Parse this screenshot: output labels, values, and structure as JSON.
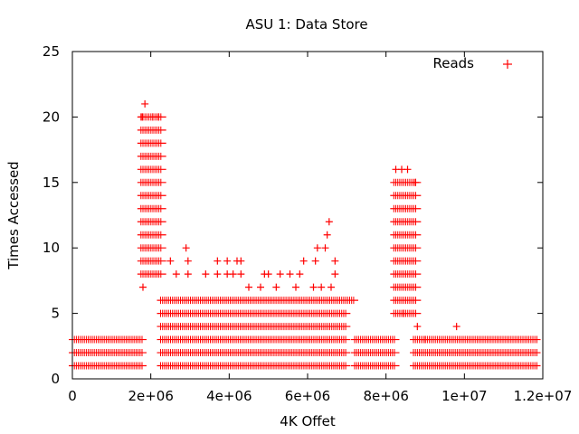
{
  "chart_data": {
    "type": "scatter",
    "title": "ASU 1: Data Store",
    "xlabel": "4K Offet",
    "ylabel": "Times Accessed",
    "xlim": [
      0,
      12000000
    ],
    "ylim": [
      0,
      25
    ],
    "xticks": [
      0,
      2000000,
      4000000,
      6000000,
      8000000,
      10000000,
      12000000
    ],
    "xtick_labels": [
      "0",
      "2e+06",
      "4e+06",
      "6e+06",
      "8e+06",
      "1e+07",
      "1.2e+07"
    ],
    "yticks": [
      0,
      5,
      10,
      15,
      20,
      25
    ],
    "ytick_labels": [
      "0",
      "5",
      "10",
      "15",
      "20",
      "25"
    ],
    "legend": {
      "position": "top-right",
      "entries": [
        "Reads"
      ]
    },
    "marker": "+",
    "grid": false,
    "colors": {
      "series": "#ff0000",
      "axis": "#000000"
    },
    "series": [
      {
        "name": "Reads",
        "bands": [
          {
            "x_range": [
              0,
              1800000
            ],
            "y": [
              1,
              2,
              3
            ]
          },
          {
            "x_range": [
              1750000,
              2300000
            ],
            "y": [
              8,
              9,
              10,
              11,
              12,
              13,
              14,
              15,
              16,
              17,
              18,
              19,
              20
            ]
          },
          {
            "x_range": [
              2250000,
              7000000
            ],
            "y": [
              1,
              2,
              3,
              4,
              5
            ]
          },
          {
            "x_range": [
              2250000,
              7200000
            ],
            "y": [
              6
            ]
          },
          {
            "x_range": [
              7200000,
              8250000
            ],
            "y": [
              1,
              2,
              3
            ]
          },
          {
            "x_range": [
              8200000,
              8800000
            ],
            "y": [
              5,
              6,
              7,
              8,
              9,
              10,
              11,
              12,
              13,
              14,
              15
            ]
          },
          {
            "x_range": [
              8700000,
              11850000
            ],
            "y": [
              1,
              2,
              3
            ]
          }
        ],
        "points": [
          [
            1850000,
            21
          ],
          [
            1800000,
            7
          ],
          [
            1780000,
            20
          ],
          [
            2050000,
            20
          ],
          [
            2200000,
            20
          ],
          [
            2500000,
            9
          ],
          [
            2650000,
            8
          ],
          [
            2900000,
            10
          ],
          [
            2950000,
            9
          ],
          [
            2950000,
            8
          ],
          [
            3400000,
            8
          ],
          [
            3700000,
            9
          ],
          [
            3700000,
            8
          ],
          [
            3950000,
            9
          ],
          [
            3950000,
            8
          ],
          [
            4200000,
            9
          ],
          [
            4300000,
            9
          ],
          [
            4100000,
            8
          ],
          [
            4300000,
            8
          ],
          [
            4900000,
            8
          ],
          [
            5000000,
            8
          ],
          [
            5300000,
            8
          ],
          [
            5550000,
            8
          ],
          [
            5800000,
            8
          ],
          [
            5900000,
            9
          ],
          [
            6200000,
            9
          ],
          [
            6250000,
            10
          ],
          [
            6450000,
            10
          ],
          [
            6500000,
            11
          ],
          [
            6550000,
            12
          ],
          [
            6700000,
            9
          ],
          [
            6700000,
            8
          ],
          [
            6350000,
            7
          ],
          [
            6600000,
            7
          ],
          [
            4500000,
            7
          ],
          [
            4800000,
            7
          ],
          [
            5200000,
            7
          ],
          [
            5700000,
            7
          ],
          [
            6150000,
            7
          ],
          [
            8250000,
            16
          ],
          [
            8400000,
            16
          ],
          [
            8550000,
            16
          ],
          [
            8750000,
            15
          ],
          [
            8800000,
            4
          ],
          [
            9800000,
            4
          ],
          [
            9000000,
            3
          ],
          [
            8450000,
            5
          ]
        ]
      }
    ]
  }
}
